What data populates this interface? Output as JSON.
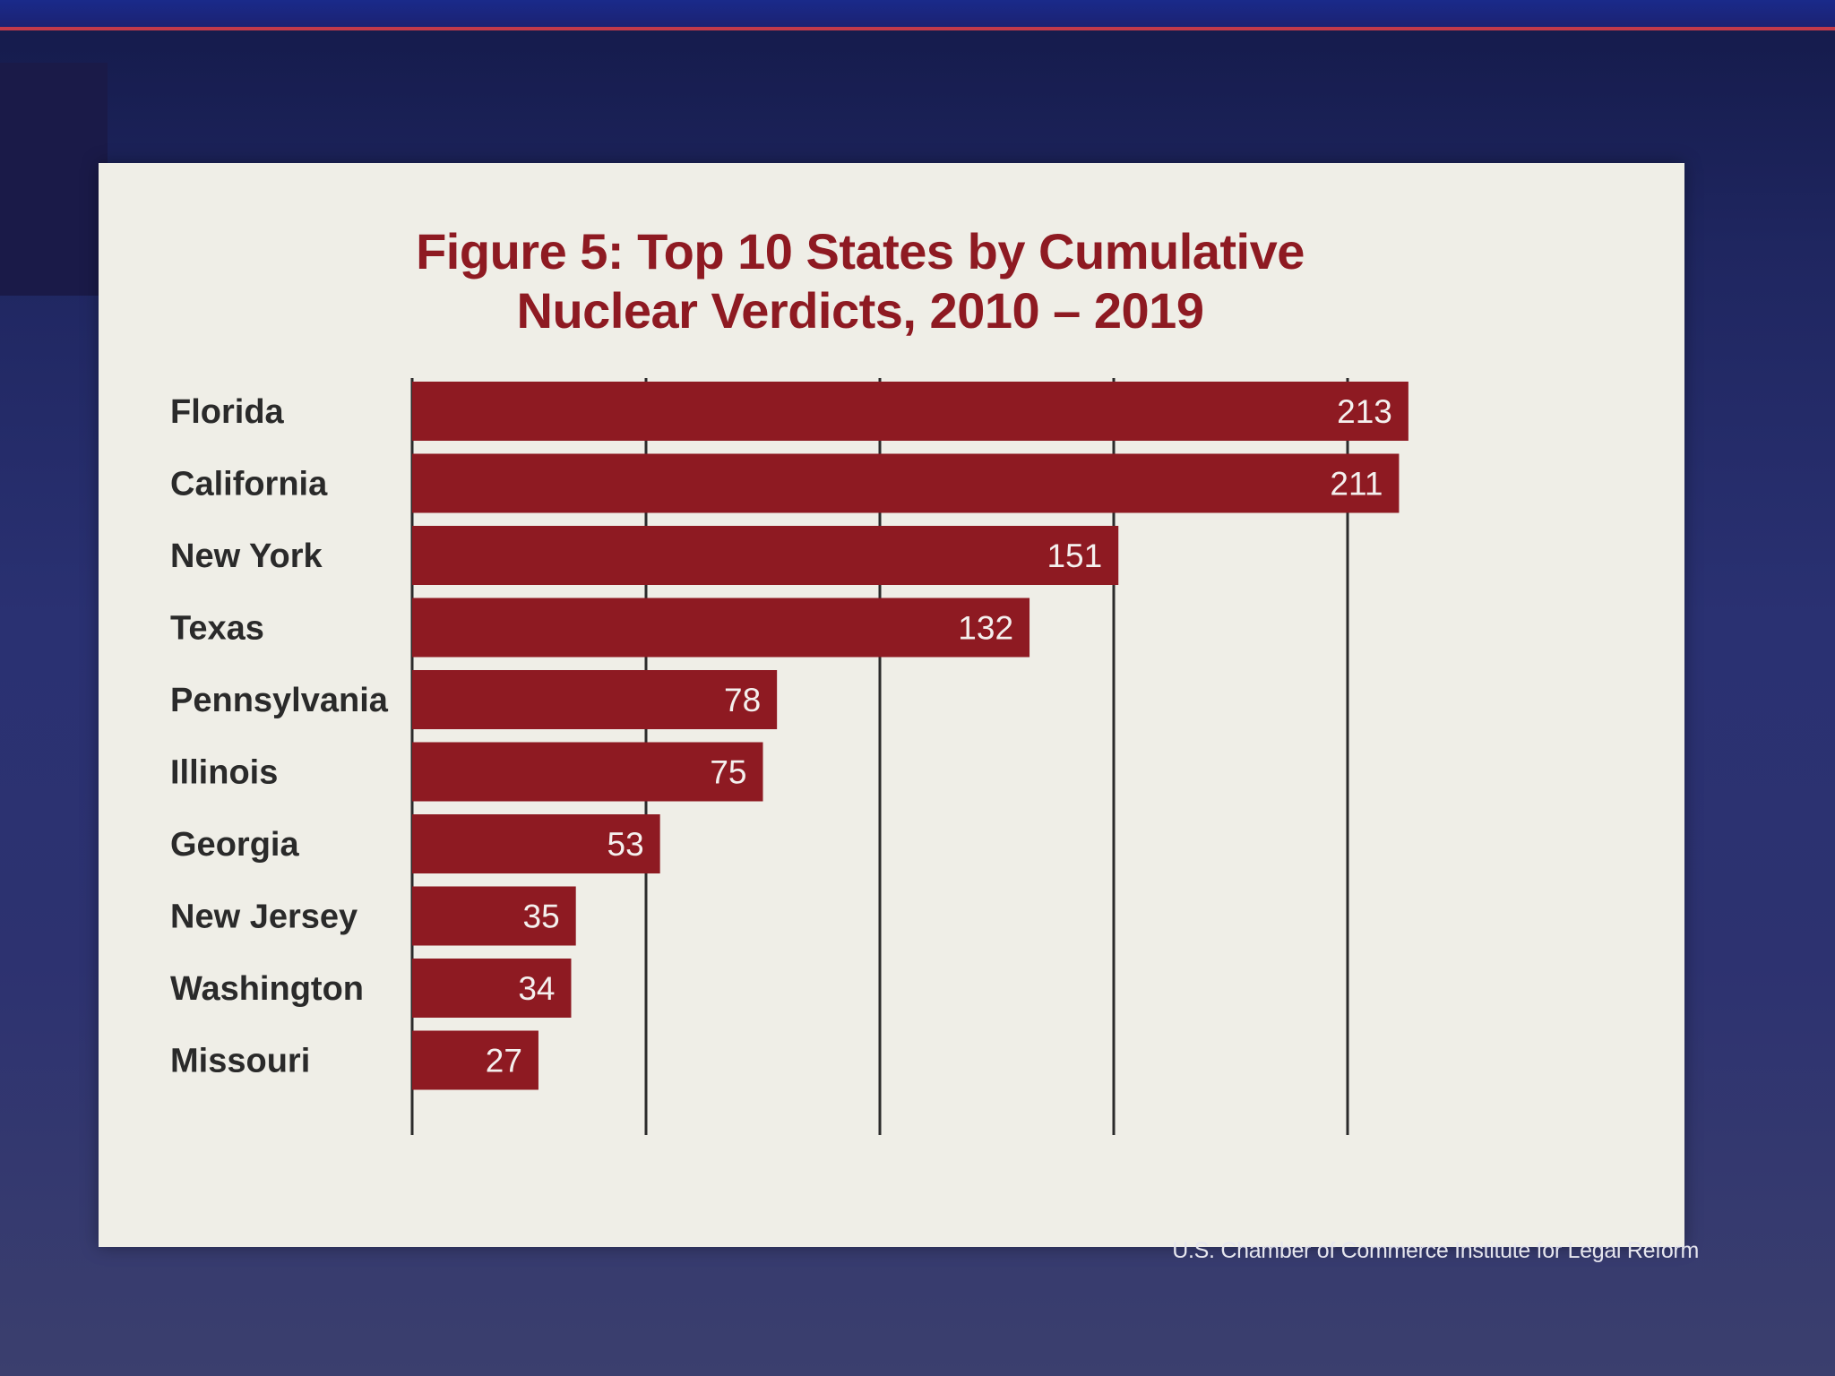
{
  "chart_data": {
    "type": "bar",
    "orientation": "horizontal",
    "title_lines": [
      "Figure 5: Top 10 States by Cumulative",
      "Nuclear Verdicts, 2010 – 2019"
    ],
    "categories": [
      "Florida",
      "California",
      "New York",
      "Texas",
      "Pennsylvania",
      "Illinois",
      "Georgia",
      "New Jersey",
      "Washington",
      "Missouri"
    ],
    "values": [
      213,
      211,
      151,
      132,
      78,
      75,
      53,
      35,
      34,
      27
    ],
    "xlim": [
      0,
      250
    ],
    "grid": true,
    "gridline_values": [
      0,
      50,
      100,
      150,
      200
    ],
    "bar_color": "#8e1a22",
    "label_color": "#2a2a2a"
  },
  "source": "U.S. Chamber of Commerce Institute for Legal Reform"
}
